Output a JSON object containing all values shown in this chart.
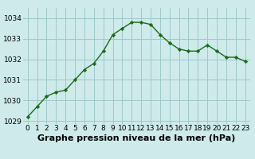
{
  "x": [
    0,
    1,
    2,
    3,
    4,
    5,
    6,
    7,
    8,
    9,
    10,
    11,
    12,
    13,
    14,
    15,
    16,
    17,
    18,
    19,
    20,
    21,
    22,
    23
  ],
  "y": [
    1029.2,
    1029.7,
    1030.2,
    1030.4,
    1030.5,
    1031.0,
    1031.5,
    1031.8,
    1032.4,
    1033.2,
    1033.5,
    1033.8,
    1033.8,
    1033.7,
    1033.2,
    1032.8,
    1032.5,
    1032.4,
    1032.4,
    1032.7,
    1032.4,
    1032.1,
    1032.1,
    1031.9
  ],
  "ylim": [
    1028.85,
    1034.5
  ],
  "yticks": [
    1029,
    1030,
    1031,
    1032,
    1033,
    1034
  ],
  "xlim": [
    -0.5,
    23.5
  ],
  "xticks": [
    0,
    1,
    2,
    3,
    4,
    5,
    6,
    7,
    8,
    9,
    10,
    11,
    12,
    13,
    14,
    15,
    16,
    17,
    18,
    19,
    20,
    21,
    22,
    23
  ],
  "xlabel": "Graphe pression niveau de la mer (hPa)",
  "line_color": "#1a6b1a",
  "marker": "D",
  "marker_size": 2.2,
  "line_width": 1.0,
  "bg_color": "#ceeaea",
  "grid_color": "#a0c8c8",
  "tick_label_fontsize": 6.5,
  "xlabel_fontsize": 8.0
}
